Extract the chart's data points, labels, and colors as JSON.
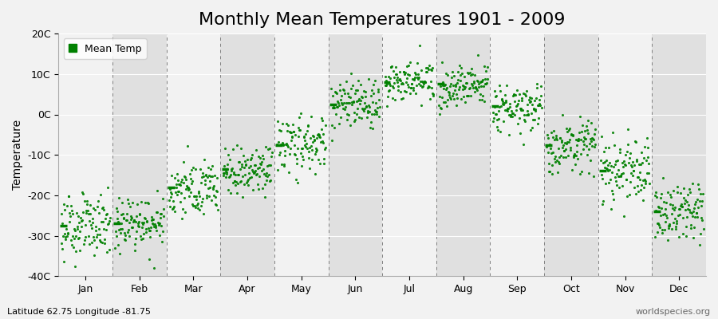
{
  "title": "Monthly Mean Temperatures 1901 - 2009",
  "ylabel": "Temperature",
  "subtitle_left": "Latitude 62.75 Longitude -81.75",
  "subtitle_right": "worldspecies.org",
  "legend_label": "Mean Temp",
  "ylim": [
    -40,
    20
  ],
  "yticks": [
    -40,
    -30,
    -20,
    -10,
    0,
    10,
    20
  ],
  "ytick_labels": [
    "-40C",
    "-30C",
    "-20C",
    "-10C",
    "0C",
    "10C",
    "20C"
  ],
  "months": [
    "Jan",
    "Feb",
    "Mar",
    "Apr",
    "May",
    "Jun",
    "Jul",
    "Aug",
    "Sep",
    "Oct",
    "Nov",
    "Dec"
  ],
  "month_means": [
    -27.5,
    -27.0,
    -18.0,
    -13.5,
    -7.5,
    2.5,
    8.0,
    7.5,
    2.0,
    -7.5,
    -14.0,
    -24.0
  ],
  "month_stds": [
    3.5,
    3.5,
    3.5,
    3.0,
    3.5,
    3.0,
    2.5,
    2.5,
    3.0,
    3.5,
    4.0,
    4.0
  ],
  "n_years": 109,
  "dot_color": "#008000",
  "dot_size": 5,
  "bg_color": "#f2f2f2",
  "band_light": "#f2f2f2",
  "band_dark": "#e0e0e0",
  "dashed_line_color": "#808080",
  "median_line_color": "#008000",
  "title_fontsize": 16,
  "label_fontsize": 10,
  "tick_fontsize": 9
}
